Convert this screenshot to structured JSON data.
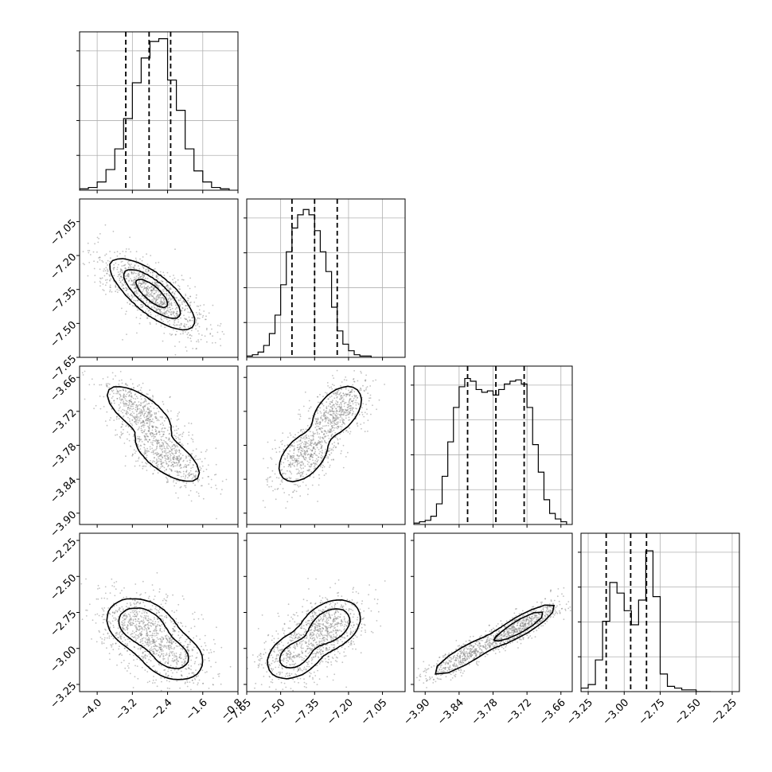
{
  "chart_data": {
    "type": "corner",
    "grid": true,
    "parameters": [
      {
        "range": [
          -4.4,
          -0.8
        ],
        "ticks": [
          -4.0,
          -3.2,
          -2.4,
          -1.6,
          -0.8
        ],
        "tick_labels": [
          "−4.0",
          "−3.2",
          "−2.4",
          "−1.6",
          "−0.8"
        ],
        "quantiles": [
          -3.35,
          -2.82,
          -2.33
        ],
        "hist": {
          "bins": [
            -4.4,
            -4.2,
            -4.0,
            -3.8,
            -3.6,
            -3.4,
            -3.2,
            -3.0,
            -2.8,
            -2.6,
            -2.4,
            -2.2,
            -2.0,
            -1.8,
            -1.6,
            -1.4,
            -1.2,
            -1.0
          ],
          "counts": [
            1,
            2,
            6,
            15,
            30,
            52,
            78,
            96,
            108,
            110,
            80,
            58,
            30,
            14,
            6,
            2,
            1
          ],
          "ylim": [
            0,
            115
          ]
        }
      },
      {
        "range": [
          -7.65,
          -6.95
        ],
        "ticks": [
          -7.65,
          -7.5,
          -7.35,
          -7.2,
          -7.05
        ],
        "tick_labels": [
          "−7.65",
          "−7.50",
          "−7.35",
          "−7.20",
          "−7.05"
        ],
        "quantiles": [
          -7.45,
          -7.35,
          -7.25
        ],
        "hist": {
          "bins": [
            -7.65,
            -7.625,
            -7.6,
            -7.575,
            -7.55,
            -7.525,
            -7.5,
            -7.475,
            -7.45,
            -7.425,
            -7.4,
            -7.375,
            -7.35,
            -7.325,
            -7.3,
            -7.275,
            -7.25,
            -7.225,
            -7.2,
            -7.175,
            -7.15,
            -7.125,
            -7.1
          ],
          "counts": [
            1,
            2,
            4,
            9,
            18,
            32,
            55,
            80,
            98,
            108,
            112,
            108,
            96,
            80,
            65,
            38,
            20,
            10,
            5,
            2,
            1,
            1
          ],
          "ylim": [
            0,
            120
          ]
        }
      },
      {
        "range": [
          -3.92,
          -3.64
        ],
        "ticks": [
          -3.9,
          -3.84,
          -3.78,
          -3.72,
          -3.66
        ],
        "tick_labels": [
          "−3.90",
          "−3.84",
          "−3.78",
          "−3.72",
          "−3.66"
        ],
        "quantiles": [
          -3.825,
          -3.775,
          -3.725
        ],
        "hist": {
          "bins": [
            -3.92,
            -3.91,
            -3.9,
            -3.89,
            -3.88,
            -3.87,
            -3.86,
            -3.85,
            -3.84,
            -3.83,
            -3.82,
            -3.81,
            -3.8,
            -3.79,
            -3.78,
            -3.77,
            -3.76,
            -3.75,
            -3.74,
            -3.73,
            -3.72,
            -3.71,
            -3.7,
            -3.69,
            -3.68,
            -3.67,
            -3.66,
            -3.65
          ],
          "counts": [
            1,
            2,
            3,
            6,
            15,
            35,
            60,
            85,
            100,
            106,
            104,
            98,
            96,
            97,
            94,
            98,
            102,
            104,
            105,
            102,
            85,
            58,
            38,
            18,
            8,
            4,
            2
          ],
          "ylim": [
            0,
            115
          ]
        }
      },
      {
        "range": [
          -3.3,
          -2.2
        ],
        "ticks": [
          -3.25,
          -3.0,
          -2.75,
          -2.5,
          -2.25
        ],
        "tick_labels": [
          "−3.25",
          "−3.00",
          "−2.75",
          "−2.50",
          "−2.25"
        ],
        "quantiles": [
          -3.125,
          -2.955,
          -2.845
        ],
        "hist": {
          "bins": [
            -3.3,
            -3.25,
            -3.2,
            -3.15,
            -3.1,
            -3.05,
            -3.0,
            -2.95,
            -2.9,
            -2.85,
            -2.8,
            -2.75,
            -2.7,
            -2.65,
            -2.6,
            -2.55,
            -2.5,
            -2.45,
            -2.4
          ],
          "counts": [
            2,
            4,
            18,
            40,
            62,
            56,
            46,
            38,
            52,
            80,
            54,
            10,
            3,
            2,
            1,
            1,
            0,
            0
          ],
          "ylim": [
            0,
            90
          ]
        }
      }
    ],
    "contour_levels": [
      0.39,
      0.86,
      0.99
    ],
    "pairs": [
      {
        "x": 0,
        "y": 1,
        "cov": [
          [
            0.44,
            -0.045
          ],
          [
            -0.045,
            0.0092
          ]
        ],
        "clusters": [
          {
            "x": -2.9,
            "y": -7.33,
            "w": 1.0
          },
          {
            "x": -2.55,
            "y": -7.42,
            "w": 0.8
          }
        ]
      },
      {
        "x": 0,
        "y": 2,
        "cov": [
          [
            0.3,
            -0.012
          ],
          [
            -0.012,
            0.0011
          ]
        ],
        "clusters": [
          {
            "x": -3.05,
            "y": -3.72,
            "w": 1.0
          },
          {
            "x": -2.4,
            "y": -3.8,
            "w": 1.0
          }
        ]
      },
      {
        "x": 1,
        "y": 2,
        "cov": [
          [
            0.0065,
            0.0012
          ],
          [
            0.0012,
            0.0011
          ]
        ],
        "clusters": [
          {
            "x": -7.25,
            "y": -3.72,
            "w": 1.0
          },
          {
            "x": -7.4,
            "y": -3.8,
            "w": 1.0
          }
        ]
      },
      {
        "x": 0,
        "y": 3,
        "cov": [
          [
            0.35,
            -0.02
          ],
          [
            -0.02,
            0.02
          ]
        ],
        "clusters": [
          {
            "x": -3.0,
            "y": -2.84,
            "w": 1.0
          },
          {
            "x": -2.3,
            "y": -3.05,
            "w": 0.7
          }
        ]
      },
      {
        "x": 1,
        "y": 3,
        "cov": [
          [
            0.01,
            0.004
          ],
          [
            0.004,
            0.018
          ]
        ],
        "clusters": [
          {
            "x": -7.28,
            "y": -2.84,
            "w": 1.0
          },
          {
            "x": -7.44,
            "y": -3.05,
            "w": 0.7
          }
        ]
      },
      {
        "x": 2,
        "y": 3,
        "cov": [
          [
            0.002,
            0.0042
          ],
          [
            0.0042,
            0.012
          ]
        ],
        "clusters": [
          {
            "x": -3.73,
            "y": -2.84,
            "w": 1.0
          },
          {
            "x": -3.83,
            "y": -3.05,
            "w": 0.7
          }
        ]
      }
    ]
  }
}
